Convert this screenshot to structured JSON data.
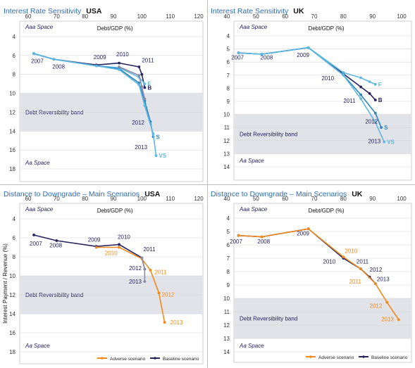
{
  "colors": {
    "title": "#2f6db5",
    "navy": "#26235f",
    "teal": "#2e85c0",
    "lightblue": "#5db7e1",
    "midblue": "#3f8ed0",
    "gray": "#8a8aa6",
    "orange": "#ef8a1f",
    "band": "#e2e3e8"
  },
  "chart_data": [
    {
      "type": "line",
      "title": "Interest Rate Sensitivity",
      "country": "USA",
      "xlabel": "Debt/GDP (%)",
      "xlim": [
        60,
        120
      ],
      "xticks": [
        "60",
        "70",
        "80",
        "90",
        "100",
        "110",
        "120"
      ],
      "ylim": [
        4,
        18
      ],
      "yticks": [
        "4",
        "6",
        "8",
        "10",
        "12",
        "14",
        "16",
        "18"
      ],
      "band": {
        "from": 10,
        "to": 14,
        "label": "Debt Reversibility band"
      },
      "zone_labels": {
        "top": "Aaa Space",
        "bottom": "Aa Space"
      },
      "series": [
        {
          "color_key": "navy",
          "end_label": "B",
          "points": [
            [
              62,
              5.8
            ],
            [
              69,
              6.4
            ],
            [
              84,
              7.0
            ],
            [
              92,
              6.8
            ],
            [
              99,
              7.2
            ],
            [
              100,
              8.0
            ],
            [
              101,
              9.4
            ]
          ]
        },
        {
          "color_key": "lightblue",
          "end_label": "F",
          "points": [
            [
              62,
              5.8
            ],
            [
              69,
              6.4
            ],
            [
              84,
              7.1
            ],
            [
              92,
              7.3
            ],
            [
              99,
              8.3
            ],
            [
              101,
              9.0
            ]
          ]
        },
        {
          "color_key": "teal",
          "end_label": "S",
          "points": [
            [
              62,
              5.8
            ],
            [
              69,
              6.4
            ],
            [
              84,
              7.1
            ],
            [
              92,
              7.4
            ],
            [
              99,
              8.9
            ],
            [
              101,
              10.8
            ],
            [
              103,
              13.0
            ],
            [
              104,
              14.6
            ]
          ]
        },
        {
          "color_key": "lightblue",
          "end_label": "VS",
          "points": [
            [
              62,
              5.8
            ],
            [
              69,
              6.4
            ],
            [
              84,
              7.1
            ],
            [
              92,
              7.5
            ],
            [
              99,
              9.1
            ],
            [
              101,
              11.3
            ],
            [
              104,
              14.3
            ],
            [
              105,
              16.6
            ]
          ]
        },
        {
          "color_key": "gray",
          "end_label": "",
          "points": [
            [
              92,
              7.2
            ],
            [
              99,
              8.1
            ],
            [
              100,
              9.3
            ],
            [
              101,
              10.6
            ]
          ]
        }
      ],
      "year_labels": [
        {
          "text": "2007",
          "x": 61,
          "y": 6.8
        },
        {
          "text": "2008",
          "x": 68.5,
          "y": 7.4
        },
        {
          "text": "2009",
          "x": 83,
          "y": 6.4
        },
        {
          "text": "2010",
          "x": 91,
          "y": 6.1
        },
        {
          "text": "2011",
          "x": 100,
          "y": 6.7
        },
        {
          "text": "2012",
          "x": 96.5,
          "y": 13.3
        },
        {
          "text": "2013",
          "x": 97.5,
          "y": 15.9
        }
      ]
    },
    {
      "type": "line",
      "title": "Interest Rate Sensitivity",
      "country": "UK",
      "xlabel": "Debt/GDP (%)",
      "xlim": [
        40,
        100
      ],
      "xticks": [
        "40",
        "50",
        "60",
        "70",
        "80",
        "90",
        "100"
      ],
      "ylim": [
        4,
        14
      ],
      "yticks": [
        "4",
        "5",
        "6",
        "7",
        "8",
        "9",
        "10",
        "11",
        "12",
        "13",
        "14"
      ],
      "band": {
        "from": 10,
        "to": 13,
        "label": "Debt Reversibility band"
      },
      "zone_labels": {
        "top": "Aaa Space",
        "bottom": "Aa Space"
      },
      "series": [
        {
          "color_key": "navy",
          "end_label": "B",
          "points": [
            [
              44,
              5.3
            ],
            [
              52,
              5.4
            ],
            [
              68,
              4.9
            ],
            [
              80,
              6.9
            ],
            [
              86,
              7.9
            ],
            [
              89,
              8.4
            ],
            [
              91,
              8.9
            ]
          ]
        },
        {
          "color_key": "lightblue",
          "end_label": "F",
          "points": [
            [
              44,
              5.3
            ],
            [
              52,
              5.4
            ],
            [
              68,
              4.9
            ],
            [
              80,
              6.8
            ],
            [
              86,
              7.2
            ],
            [
              89,
              7.5
            ],
            [
              91,
              7.7
            ]
          ]
        },
        {
          "color_key": "teal",
          "end_label": "S",
          "points": [
            [
              44,
              5.3
            ],
            [
              52,
              5.4
            ],
            [
              68,
              4.9
            ],
            [
              80,
              7.0
            ],
            [
              86,
              8.5
            ],
            [
              91,
              9.9
            ],
            [
              93,
              11.0
            ]
          ]
        },
        {
          "color_key": "lightblue",
          "end_label": "VS",
          "points": [
            [
              44,
              5.3
            ],
            [
              52,
              5.4
            ],
            [
              68,
              4.9
            ],
            [
              80,
              7.0
            ],
            [
              86,
              8.8
            ],
            [
              91,
              10.6
            ],
            [
              94,
              12.1
            ]
          ]
        }
      ],
      "year_labels": [
        {
          "text": "2007",
          "x": 41.5,
          "y": 5.8
        },
        {
          "text": "2008",
          "x": 51.5,
          "y": 5.8
        },
        {
          "text": "2009",
          "x": 64,
          "y": 5.6
        },
        {
          "text": "2010",
          "x": 72.5,
          "y": 7.4
        },
        {
          "text": "2011",
          "x": 80,
          "y": 9.1
        },
        {
          "text": "2012",
          "x": 87.5,
          "y": 10.7
        },
        {
          "text": "2013",
          "x": 88.5,
          "y": 12.2
        }
      ]
    },
    {
      "type": "line",
      "title": "Distance to Downgrade – Main Scenarios",
      "country": "USA",
      "xlabel": "Debt/GDP (%)",
      "ylabel": "Interest Payment / Revenue (%)",
      "xlim": [
        60,
        120
      ],
      "xticks": [
        "60",
        "70",
        "80",
        "90",
        "100",
        "110",
        "120"
      ],
      "ylim": [
        4,
        18
      ],
      "yticks": [
        "4",
        "6",
        "8",
        "10",
        "12",
        "14",
        "16",
        "18"
      ],
      "band": {
        "from": 10,
        "to": 14,
        "label": "Debt Reversibility band"
      },
      "zone_labels": {
        "top": "Aaa Space",
        "bottom": "Aa Space"
      },
      "legend": [
        {
          "name": "Adverse scenario",
          "color_key": "orange"
        },
        {
          "name": "Baseline scenario",
          "color_key": "navy"
        }
      ],
      "series": [
        {
          "name": "Baseline scenario",
          "color_key": "navy",
          "points": [
            [
              62,
              5.7
            ],
            [
              70,
              6.3
            ],
            [
              84,
              6.9
            ],
            [
              92,
              6.7
            ],
            [
              100,
              8.1
            ],
            [
              101,
              9.3
            ]
          ]
        },
        {
          "name": "Adverse scenario",
          "color_key": "orange",
          "points": [
            [
              84,
              7.0
            ],
            [
              92,
              7.0
            ],
            [
              100,
              8.2
            ],
            [
              103,
              9.4
            ],
            [
              106,
              11.8
            ],
            [
              108,
              14.9
            ]
          ]
        },
        {
          "color_key": "gray",
          "end_label": "",
          "points": [
            [
              100,
              8.1
            ],
            [
              101,
              9.3
            ],
            [
              101,
              10.6
            ]
          ]
        }
      ],
      "year_labels": [
        {
          "text": "2007",
          "x": 60.5,
          "y": 6.8
        },
        {
          "text": "2008",
          "x": 67.5,
          "y": 7.0
        },
        {
          "text": "2009",
          "x": 81,
          "y": 6.4
        },
        {
          "text": "2010",
          "x": 91.5,
          "y": 6.1
        },
        {
          "text": "2010",
          "x": 87,
          "y": 7.8,
          "color_key": "orange"
        },
        {
          "text": "2011",
          "x": 100.5,
          "y": 7.4
        },
        {
          "text": "2011",
          "x": 104.5,
          "y": 9.8,
          "color_key": "orange"
        },
        {
          "text": "2012",
          "x": 95.5,
          "y": 9.4
        },
        {
          "text": "2012",
          "x": 107,
          "y": 12.2,
          "color_key": "orange"
        },
        {
          "text": "2013",
          "x": 95.5,
          "y": 10.8
        },
        {
          "text": "2013",
          "x": 110,
          "y": 15.1,
          "color_key": "orange"
        }
      ]
    },
    {
      "type": "line",
      "title": "Distance to Downgrade – Main Scenarios",
      "country": "UK",
      "xlabel": "Debt/GDP (%)",
      "xlim": [
        40,
        100
      ],
      "xticks": [
        "40",
        "50",
        "60",
        "70",
        "80",
        "90",
        "100"
      ],
      "ylim": [
        4,
        14
      ],
      "yticks": [
        "4",
        "5",
        "6",
        "7",
        "8",
        "9",
        "10",
        "11",
        "12",
        "13",
        "14"
      ],
      "band": {
        "from": 10,
        "to": 13,
        "label": "Debt Reversibility band"
      },
      "zone_labels": {
        "top": "Aaa Space",
        "bottom": "Aa Space"
      },
      "legend": [
        {
          "name": "Adverse scenario",
          "color_key": "orange"
        },
        {
          "name": "Baseline scenario",
          "color_key": "navy"
        }
      ],
      "series": [
        {
          "name": "Baseline scenario",
          "color_key": "navy",
          "points": [
            [
              44,
              5.3
            ],
            [
              52,
              5.4
            ],
            [
              68,
              4.8
            ],
            [
              80,
              7.0
            ],
            [
              86,
              7.8
            ],
            [
              89,
              8.4
            ],
            [
              91,
              8.9
            ]
          ]
        },
        {
          "name": "Adverse scenario",
          "color_key": "orange",
          "points": [
            [
              44,
              5.3
            ],
            [
              52,
              5.4
            ],
            [
              68,
              4.8
            ],
            [
              80,
              6.9
            ],
            [
              86,
              7.8
            ],
            [
              91,
              8.9
            ],
            [
              95,
              10.3
            ],
            [
              99,
              11.6
            ]
          ]
        }
      ],
      "year_labels": [
        {
          "text": "2007",
          "x": 41,
          "y": 5.9
        },
        {
          "text": "2008",
          "x": 50.5,
          "y": 5.9
        },
        {
          "text": "2009",
          "x": 64,
          "y": 5.3
        },
        {
          "text": "2010",
          "x": 80.5,
          "y": 6.6,
          "color_key": "orange"
        },
        {
          "text": "2010",
          "x": 73,
          "y": 7.4
        },
        {
          "text": "2011",
          "x": 84.5,
          "y": 7.4
        },
        {
          "text": "2011",
          "x": 82,
          "y": 8.9,
          "color_key": "orange"
        },
        {
          "text": "2012",
          "x": 89,
          "y": 8.0
        },
        {
          "text": "2013",
          "x": 91.5,
          "y": 8.7
        },
        {
          "text": "2012",
          "x": 89,
          "y": 10.7,
          "color_key": "orange"
        },
        {
          "text": "2013",
          "x": 93,
          "y": 11.7,
          "color_key": "orange"
        }
      ]
    }
  ]
}
